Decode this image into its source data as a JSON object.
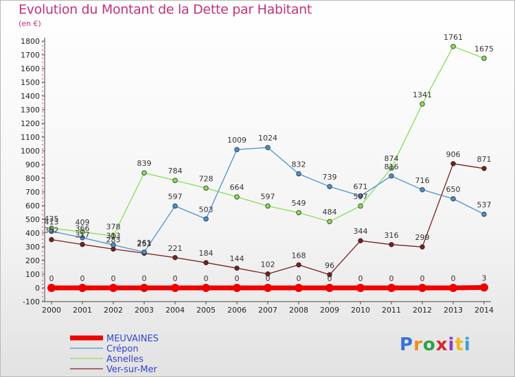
{
  "title": "Evolution du Montant de la Dette par Habitant",
  "subtitle": "(en €)",
  "logo": {
    "text": "Proxiti",
    "letters": [
      "P",
      "r",
      "o",
      "x",
      "i",
      "t",
      "i"
    ],
    "colors": [
      "#3a6fd8",
      "#f08c1a",
      "#2aa14a",
      "#d9262e",
      "#8a3fbf",
      "#f0b81a",
      "#3a9fd8"
    ]
  },
  "chart_data": {
    "type": "line",
    "title": "Evolution du Montant de la Dette par Habitant",
    "ylabel": "(en €)",
    "x": [
      "2000",
      "2001",
      "2002",
      "2003",
      "2004",
      "2005",
      "2006",
      "2007",
      "2008",
      "2009",
      "2010",
      "2011",
      "2012",
      "2013",
      "2014"
    ],
    "ylim": [
      -100,
      1800
    ],
    "yticks": [
      -100,
      0,
      100,
      200,
      300,
      400,
      500,
      600,
      700,
      800,
      900,
      1000,
      1100,
      1200,
      1300,
      1400,
      1500,
      1600,
      1700,
      1800
    ],
    "grid": false,
    "legend": "bottom-left",
    "series": [
      {
        "name": "MEUVAINES",
        "color": "#ee0000",
        "values": [
          0,
          0,
          0,
          0,
          0,
          0,
          0,
          0,
          0,
          0,
          0,
          0,
          0,
          0,
          3
        ],
        "labels": [
          "0",
          "0",
          "0",
          "0",
          "0",
          "0",
          "0",
          "0",
          "0",
          "0",
          "0",
          "0",
          "0",
          "0",
          "3"
        ]
      },
      {
        "name": "Crépon",
        "color": "#4a90d0",
        "values": [
          413,
          366,
          313,
          261,
          597,
          503,
          1009,
          1024,
          832,
          739,
          671,
          816,
          716,
          650,
          537
        ],
        "labels": [
          "413",
          "366",
          "313",
          "261",
          "597",
          "503",
          "1009",
          "1024",
          "832",
          "739",
          "671",
          "816",
          "716",
          "650",
          "537"
        ]
      },
      {
        "name": "Asnelles",
        "color": "#88dd55",
        "values": [
          435,
          409,
          378,
          839,
          784,
          728,
          664,
          597,
          549,
          484,
          597,
          874,
          1341,
          1761,
          1675
        ],
        "labels": [
          "435",
          "409",
          "378",
          "839",
          "784",
          "728",
          "664",
          "597",
          "549",
          "484",
          "597",
          "874",
          "1341",
          "1761",
          "1675"
        ]
      },
      {
        "name": "Ver-sur-Mer",
        "color": "#7a1e1e",
        "values": [
          352,
          317,
          283,
          253,
          221,
          184,
          144,
          102,
          168,
          96,
          344,
          316,
          299,
          906,
          871
        ],
        "labels": [
          "352",
          "317",
          "283",
          "253",
          "221",
          "184",
          "144",
          "102",
          "168",
          "96",
          "344",
          "316",
          "299",
          "906",
          "871"
        ]
      }
    ]
  }
}
